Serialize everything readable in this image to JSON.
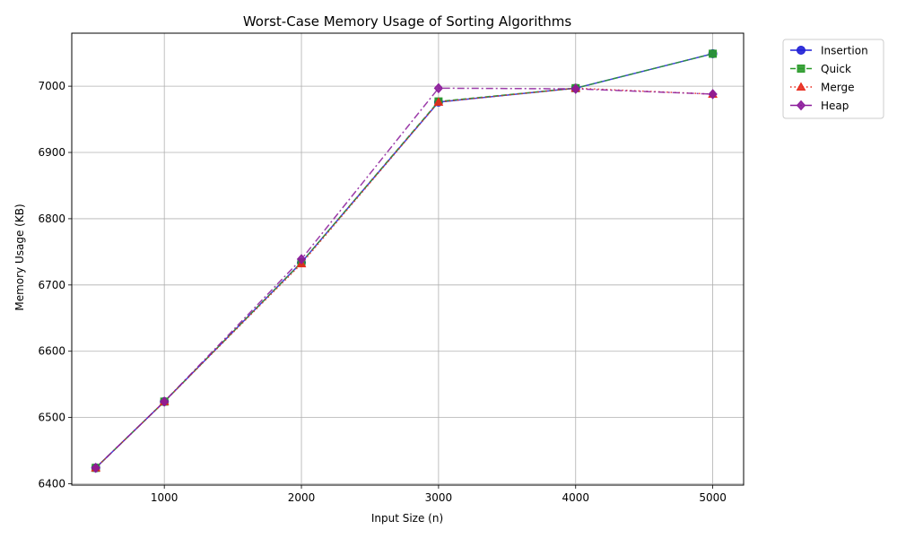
{
  "chart_data": {
    "type": "line",
    "title": "Worst-Case Memory Usage of Sorting Algorithms",
    "xlabel": "Input Size (n)",
    "ylabel": "Memory Usage (KB)",
    "x": [
      500,
      1000,
      2000,
      3000,
      4000,
      5000
    ],
    "xlim": [
      325,
      5225
    ],
    "ylim": [
      6398,
      7080
    ],
    "xticks": [
      1000,
      2000,
      3000,
      4000,
      5000
    ],
    "yticks": [
      6400,
      6500,
      6600,
      6700,
      6800,
      6900,
      7000
    ],
    "grid": true,
    "legend_position": "outside-top-right",
    "series": [
      {
        "name": "Insertion",
        "color": "#1f1fd6",
        "marker": "circle",
        "dash": "solid",
        "values": [
          6424,
          6524,
          6734,
          6976,
          6997,
          7049
        ]
      },
      {
        "name": "Quick",
        "color": "#2a9a2a",
        "marker": "square",
        "dash": "dashed",
        "values": [
          6424,
          6524,
          6734,
          6977,
          6997,
          7049
        ]
      },
      {
        "name": "Merge",
        "color": "#e8291c",
        "marker": "triangle",
        "dash": "dotted",
        "values": [
          6424,
          6524,
          6732,
          6976,
          6997,
          6988
        ]
      },
      {
        "name": "Heap",
        "color": "#8b1a9a",
        "marker": "diamond",
        "dash": "dashdot",
        "values": [
          6424,
          6524,
          6739,
          6997,
          6996,
          6988
        ]
      }
    ]
  }
}
